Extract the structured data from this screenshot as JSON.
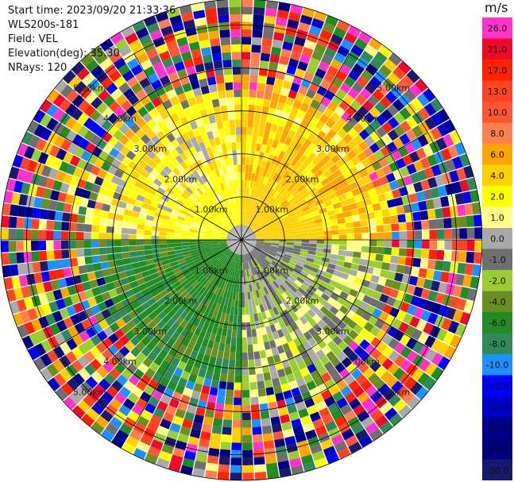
{
  "header": {
    "start_time": "Start time: 2023/09/20 21:33:36",
    "instrument": "WLS200s-181",
    "field": "Field: VEL",
    "elevation": "Elevation(deg): 35.30",
    "nrays": "NRays: 120"
  },
  "colorbar": {
    "unit": "m/s",
    "levels": [
      {
        "label": "26.0",
        "color": "#ff33cc"
      },
      {
        "label": "21.0",
        "color": "#ee0a2a"
      },
      {
        "label": "17.0",
        "color": "#ff2200"
      },
      {
        "label": "13.0",
        "color": "#ff4422"
      },
      {
        "label": "10.0",
        "color": "#ff5533"
      },
      {
        "label": "8.0",
        "color": "#ff7f50"
      },
      {
        "label": "6.0",
        "color": "#ffa500"
      },
      {
        "label": "4.0",
        "color": "#ffd000"
      },
      {
        "label": "2.0",
        "color": "#ffff00"
      },
      {
        "label": "1.0",
        "color": "#ffff88"
      },
      {
        "label": "0.0",
        "color": "#a9a9a9"
      },
      {
        "label": "-1.0",
        "color": "#6f6f6f"
      },
      {
        "label": "-2.0",
        "color": "#9acd32"
      },
      {
        "label": "-4.0",
        "color": "#6b8e23"
      },
      {
        "label": "-6.0",
        "color": "#228b22"
      },
      {
        "label": "-8.0",
        "color": "#2e8b57"
      },
      {
        "label": "-10.0",
        "color": "#1e90ff"
      },
      {
        "label": "-13.0",
        "color": "#0000ff"
      },
      {
        "label": "-17.0",
        "color": "#0000cd"
      },
      {
        "label": "-21.0",
        "color": "#00008b"
      },
      {
        "label": "-26.0",
        "color": "#000080"
      },
      {
        "label": "-30.0",
        "color": "#191970"
      }
    ]
  },
  "chart_data": {
    "type": "heatmap",
    "projection": "polar PPI",
    "field": "VEL",
    "unit": "m/s",
    "nrays": 120,
    "range_ring_labels": [
      "1.00km",
      "2.00km",
      "3.00km",
      "4.00km",
      "5.00km"
    ],
    "range_rings_km": [
      1,
      2,
      3,
      4,
      5
    ],
    "max_range_km": 5.6,
    "value_range": [
      -30,
      26
    ],
    "sectors": [
      {
        "azimuth_deg": [
          0,
          90
        ],
        "dominant_velocity": 4.0
      },
      {
        "azimuth_deg": [
          90,
          180
        ],
        "dominant_velocity": -1.0
      },
      {
        "azimuth_deg": [
          180,
          270
        ],
        "dominant_velocity": -6.0
      },
      {
        "azimuth_deg": [
          270,
          360
        ],
        "dominant_velocity": 2.0
      }
    ],
    "inner_field_extent_km": 3.3,
    "outer_region": "noise (all colors)"
  }
}
